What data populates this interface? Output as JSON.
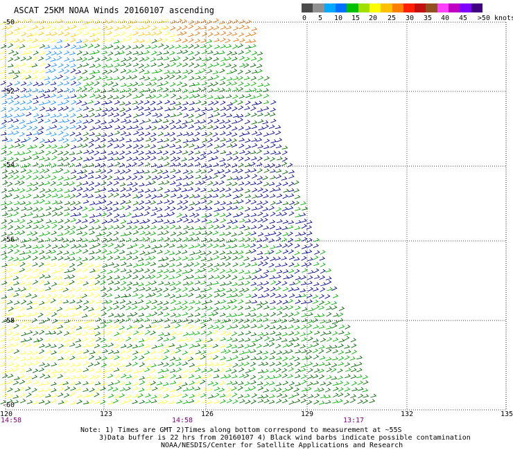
{
  "header": {
    "title": "ASCAT 25KM NOAA Winds 20160107 ascending"
  },
  "colorbar": {
    "labels": [
      "0",
      "5",
      "10",
      "15",
      "20",
      "25",
      "30",
      "35",
      "40",
      "45",
      ">50 knots"
    ],
    "colors": [
      "#4a4a4a",
      "#909090",
      "#00a8ff",
      "#0070ff",
      "#00c000",
      "#a0e000",
      "#ffff00",
      "#ffc000",
      "#ff8000",
      "#ff2000",
      "#c01010",
      "#905020",
      "#ff40ff",
      "#c000c0",
      "#8000ff",
      "#400080"
    ]
  },
  "map": {
    "lat_labels": [
      "-50",
      "-52",
      "-54",
      "-56",
      "-58",
      "-60"
    ],
    "lon_labels": [
      "120",
      "123",
      "126",
      "129",
      "132",
      "135"
    ],
    "time_labels": [
      "14:58",
      "14:58",
      "13:17"
    ],
    "colors": {
      "grid": "#000000",
      "time": "#800080",
      "dark_green": "#006400",
      "green": "#00b000",
      "navy": "#00008b",
      "light_blue": "#1e90ff",
      "yellow": "#ffff30",
      "gold": "#ffc800",
      "orange": "#e07810"
    }
  },
  "notes": {
    "line1": "Note: 1) Times are GMT 2)Times along bottom correspond to measurement at ~55S",
    "line2": "3)Data buffer is 22 hrs from 20160107 4) Black wind barbs indicate possible contamination",
    "line3": "NOAA/NESDIS/Center for Satellite Applications and Research"
  }
}
